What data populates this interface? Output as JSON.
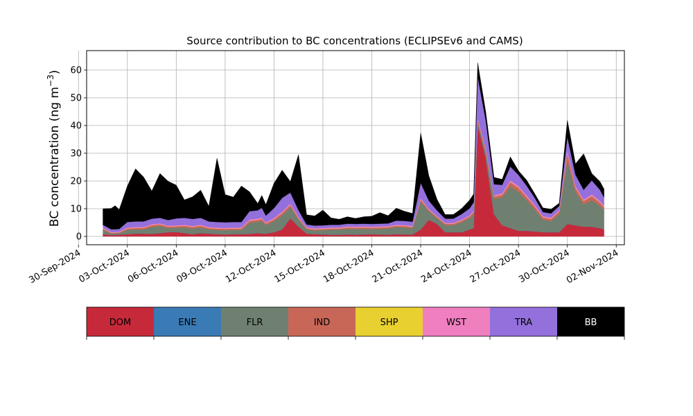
{
  "chart_data": {
    "type": "area",
    "stacked": true,
    "title": "Source contribution to BC concentrations (ECLIPSEv6 and CAMS)",
    "ylabel": "BC concentration (ng m⁻³)",
    "xlabel": "",
    "ylim": [
      -3,
      67
    ],
    "xlim": [
      "2024-09-30T12:00",
      "2024-11-02T12:00"
    ],
    "grid": true,
    "yticks": [
      0,
      10,
      20,
      30,
      40,
      50,
      60
    ],
    "xtick_labels": [
      "30-Sep-2024",
      "03-Oct-2024",
      "06-Oct-2024",
      "09-Oct-2024",
      "12-Oct-2024",
      "15-Oct-2024",
      "18-Oct-2024",
      "21-Oct-2024",
      "24-Oct-2024",
      "27-Oct-2024",
      "30-Oct-2024",
      "02-Nov-2024"
    ],
    "x": [
      "2024-10-01T12:00",
      "2024-10-02T00:00",
      "2024-10-02T06:00",
      "2024-10-02T12:00",
      "2024-10-03T00:00",
      "2024-10-03T12:00",
      "2024-10-04T00:00",
      "2024-10-04T12:00",
      "2024-10-05T00:00",
      "2024-10-05T12:00",
      "2024-10-06T00:00",
      "2024-10-06T12:00",
      "2024-10-07T00:00",
      "2024-10-07T12:00",
      "2024-10-08T00:00",
      "2024-10-08T12:00",
      "2024-10-09T00:00",
      "2024-10-09T12:00",
      "2024-10-10T00:00",
      "2024-10-10T12:00",
      "2024-10-11T00:00",
      "2024-10-11T06:00",
      "2024-10-11T12:00",
      "2024-10-12T00:00",
      "2024-10-12T12:00",
      "2024-10-13T00:00",
      "2024-10-13T12:00",
      "2024-10-14T00:00",
      "2024-10-14T12:00",
      "2024-10-15T00:00",
      "2024-10-15T12:00",
      "2024-10-16T00:00",
      "2024-10-16T12:00",
      "2024-10-17T00:00",
      "2024-10-17T12:00",
      "2024-10-18T00:00",
      "2024-10-18T12:00",
      "2024-10-19T00:00",
      "2024-10-19T12:00",
      "2024-10-20T00:00",
      "2024-10-20T12:00",
      "2024-10-21T00:00",
      "2024-10-21T12:00",
      "2024-10-22T00:00",
      "2024-10-22T12:00",
      "2024-10-23T00:00",
      "2024-10-23T12:00",
      "2024-10-24T00:00",
      "2024-10-24T06:00",
      "2024-10-24T12:00",
      "2024-10-25T00:00",
      "2024-10-25T12:00",
      "2024-10-26T00:00",
      "2024-10-26T12:00",
      "2024-10-27T00:00",
      "2024-10-27T12:00",
      "2024-10-28T00:00",
      "2024-10-28T12:00",
      "2024-10-29T00:00",
      "2024-10-29T12:00",
      "2024-10-30T00:00",
      "2024-10-30T12:00",
      "2024-10-31T00:00",
      "2024-10-31T12:00",
      "2024-11-01T00:00",
      "2024-11-01T06:00"
    ],
    "series": [
      {
        "name": "DOM",
        "color": "#c62a3a",
        "values": [
          0.8,
          0.5,
          0.5,
          0.6,
          0.8,
          1.0,
          1.0,
          0.9,
          1.2,
          1.5,
          1.6,
          1.2,
          0.8,
          1.2,
          1.0,
          0.8,
          0.7,
          0.8,
          0.8,
          0.9,
          1.2,
          1.0,
          1.0,
          1.5,
          2.5,
          6.5,
          3.5,
          1.0,
          0.8,
          0.7,
          0.6,
          0.6,
          0.7,
          0.6,
          0.7,
          0.8,
          0.7,
          0.6,
          0.8,
          0.7,
          0.7,
          2.5,
          6.0,
          4.5,
          1.5,
          1.5,
          1.5,
          2.5,
          3.0,
          40.0,
          28.0,
          8.0,
          4.0,
          3.0,
          2.0,
          2.0,
          1.8,
          1.5,
          1.5,
          1.5,
          4.5,
          4.0,
          3.5,
          3.5,
          3.0,
          2.5
        ]
      },
      {
        "name": "ENE",
        "color": "#3a7ab5",
        "values": [
          0.05,
          0.05,
          0.05,
          0.05,
          0.05,
          0.05,
          0.05,
          0.05,
          0.05,
          0.05,
          0.05,
          0.05,
          0.05,
          0.05,
          0.05,
          0.05,
          0.05,
          0.05,
          0.05,
          0.05,
          0.05,
          0.05,
          0.05,
          0.05,
          0.05,
          0.05,
          0.05,
          0.05,
          0.05,
          0.05,
          0.05,
          0.05,
          0.05,
          0.05,
          0.05,
          0.05,
          0.05,
          0.05,
          0.05,
          0.05,
          0.05,
          0.05,
          0.05,
          0.05,
          0.05,
          0.05,
          0.05,
          0.05,
          0.05,
          0.05,
          0.05,
          0.05,
          0.05,
          0.05,
          0.05,
          0.05,
          0.05,
          0.05,
          0.05,
          0.05,
          0.05,
          0.05,
          0.05,
          0.05,
          0.05,
          0.05
        ]
      },
      {
        "name": "FLR",
        "color": "#6f8070",
        "values": [
          1.5,
          0.5,
          0.5,
          0.5,
          1.5,
          1.5,
          1.5,
          2.5,
          2.5,
          1.5,
          1.5,
          2.0,
          2.0,
          2.0,
          1.5,
          1.5,
          1.5,
          1.5,
          1.5,
          4.0,
          4.0,
          4.5,
          3.0,
          4.0,
          5.0,
          4.0,
          2.5,
          1.5,
          1.3,
          1.5,
          1.8,
          1.8,
          2.0,
          2.0,
          2.0,
          1.8,
          2.0,
          2.2,
          2.5,
          2.5,
          2.2,
          10.0,
          3.0,
          2.0,
          2.5,
          2.5,
          3.5,
          4.0,
          5.0,
          1.0,
          2.0,
          5.5,
          10.0,
          15.0,
          14.0,
          11.0,
          8.0,
          4.5,
          4.0,
          6.5,
          23.0,
          12.0,
          8.0,
          9.5,
          8.0,
          7.0
        ]
      },
      {
        "name": "IND",
        "color": "#c86757",
        "values": [
          0.5,
          0.3,
          0.3,
          0.3,
          0.5,
          0.5,
          0.5,
          0.6,
          0.6,
          0.5,
          0.5,
          0.6,
          0.6,
          0.6,
          0.5,
          0.5,
          0.5,
          0.5,
          0.5,
          0.7,
          0.7,
          0.8,
          0.6,
          0.7,
          0.9,
          0.8,
          0.6,
          0.4,
          0.4,
          0.4,
          0.4,
          0.4,
          0.5,
          0.5,
          0.5,
          0.5,
          0.5,
          0.5,
          0.5,
          0.5,
          0.5,
          0.8,
          0.5,
          0.5,
          0.5,
          0.5,
          0.6,
          0.7,
          0.8,
          1.0,
          1.0,
          0.8,
          1.0,
          1.5,
          1.5,
          1.2,
          1.0,
          0.8,
          0.8,
          1.0,
          2.5,
          1.5,
          1.2,
          1.5,
          1.2,
          1.0
        ]
      },
      {
        "name": "SHP",
        "color": "#e8d030",
        "values": [
          0.05,
          0.05,
          0.05,
          0.05,
          0.05,
          0.05,
          0.05,
          0.05,
          0.05,
          0.05,
          0.05,
          0.05,
          0.05,
          0.05,
          0.05,
          0.05,
          0.05,
          0.05,
          0.05,
          0.05,
          0.05,
          0.05,
          0.05,
          0.05,
          0.05,
          0.05,
          0.05,
          0.05,
          0.05,
          0.05,
          0.05,
          0.05,
          0.05,
          0.05,
          0.05,
          0.05,
          0.05,
          0.05,
          0.05,
          0.05,
          0.05,
          0.05,
          0.05,
          0.05,
          0.05,
          0.05,
          0.05,
          0.05,
          0.05,
          0.05,
          0.05,
          0.05,
          0.05,
          0.05,
          0.05,
          0.05,
          0.05,
          0.05,
          0.05,
          0.05,
          0.05,
          0.05,
          0.05,
          0.05,
          0.05,
          0.05
        ]
      },
      {
        "name": "WST",
        "color": "#f07fc0",
        "values": [
          0.3,
          0.2,
          0.2,
          0.2,
          0.3,
          0.3,
          0.3,
          0.3,
          0.3,
          0.3,
          0.3,
          0.3,
          0.3,
          0.3,
          0.3,
          0.3,
          0.3,
          0.3,
          0.3,
          0.4,
          0.4,
          0.4,
          0.3,
          0.4,
          0.4,
          0.4,
          0.3,
          0.3,
          0.3,
          0.3,
          0.3,
          0.3,
          0.3,
          0.3,
          0.3,
          0.3,
          0.3,
          0.3,
          0.3,
          0.3,
          0.3,
          0.4,
          0.3,
          0.3,
          0.3,
          0.3,
          0.3,
          0.3,
          0.4,
          0.5,
          0.5,
          0.4,
          0.5,
          0.6,
          0.6,
          0.5,
          0.5,
          0.4,
          0.4,
          0.4,
          0.8,
          0.6,
          0.5,
          0.6,
          0.5,
          0.5
        ]
      },
      {
        "name": "TRA",
        "color": "#9370db",
        "values": [
          1.0,
          1.0,
          1.0,
          1.0,
          2.0,
          2.0,
          2.0,
          2.0,
          2.0,
          2.0,
          2.5,
          2.5,
          2.5,
          2.5,
          2.0,
          2.0,
          2.0,
          2.0,
          2.0,
          3.0,
          3.0,
          3.5,
          2.5,
          3.5,
          5.0,
          4.0,
          2.5,
          1.0,
          1.0,
          1.0,
          1.0,
          1.0,
          1.0,
          1.0,
          1.0,
          1.0,
          1.0,
          1.0,
          1.5,
          1.5,
          1.5,
          5.5,
          3.0,
          2.0,
          1.5,
          1.5,
          2.0,
          2.5,
          3.0,
          15.0,
          10.0,
          4.0,
          3.0,
          5.0,
          4.0,
          3.5,
          2.5,
          1.5,
          1.5,
          1.5,
          5.0,
          4.0,
          3.5,
          5.0,
          4.0,
          3.0
        ]
      },
      {
        "name": "BB",
        "color": "#000000",
        "values": [
          5.8,
          7.5,
          8.5,
          7.0,
          13.0,
          19.0,
          16.0,
          10.0,
          16.0,
          14.0,
          12.0,
          6.5,
          8.0,
          10.0,
          5.5,
          23.0,
          10.0,
          9.0,
          13.0,
          7.0,
          2.5,
          4.5,
          4.0,
          9.0,
          10.0,
          4.0,
          20.0,
          3.5,
          3.5,
          5.5,
          2.5,
          2.0,
          2.5,
          2.0,
          2.5,
          2.8,
          4.0,
          2.8,
          4.5,
          3.5,
          3.0,
          18.0,
          9.0,
          4.0,
          1.5,
          1.5,
          2.0,
          3.0,
          3.0,
          5.0,
          3.0,
          2.5,
          2.0,
          3.5,
          1.5,
          2.0,
          1.5,
          1.5,
          1.5,
          1.0,
          6.0,
          4.0,
          13.0,
          2.5,
          3.0,
          3.0
        ]
      }
    ],
    "legend": {
      "placement": "below",
      "entries": [
        "DOM",
        "ENE",
        "FLR",
        "IND",
        "SHP",
        "WST",
        "TRA",
        "BB"
      ],
      "colors": [
        "#c62a3a",
        "#3a7ab5",
        "#6f8070",
        "#c86757",
        "#e8d030",
        "#f07fc0",
        "#9370db",
        "#000000"
      ],
      "text_colors": [
        "#000000",
        "#000000",
        "#000000",
        "#000000",
        "#000000",
        "#000000",
        "#000000",
        "#ffffff"
      ]
    }
  }
}
